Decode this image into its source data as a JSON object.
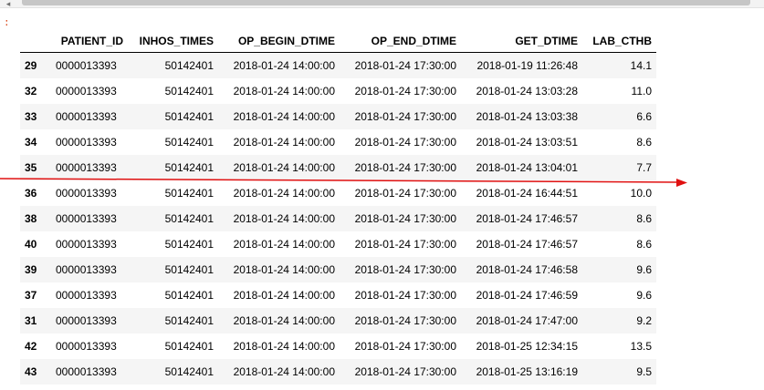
{
  "prompt": ":",
  "scrollbar": {
    "left_arrow": "◂"
  },
  "table": {
    "columns": [
      "",
      "PATIENT_ID",
      "INHOS_TIMES",
      "OP_BEGIN_DTIME",
      "OP_END_DTIME",
      "GET_DTIME",
      "LAB_CTHB"
    ],
    "rows": [
      [
        "29",
        "0000013393",
        "50142401",
        "2018-01-24 14:00:00",
        "2018-01-24 17:30:00",
        "2018-01-19 11:26:48",
        "14.1"
      ],
      [
        "32",
        "0000013393",
        "50142401",
        "2018-01-24 14:00:00",
        "2018-01-24 17:30:00",
        "2018-01-24 13:03:28",
        "11.0"
      ],
      [
        "33",
        "0000013393",
        "50142401",
        "2018-01-24 14:00:00",
        "2018-01-24 17:30:00",
        "2018-01-24 13:03:38",
        "6.6"
      ],
      [
        "34",
        "0000013393",
        "50142401",
        "2018-01-24 14:00:00",
        "2018-01-24 17:30:00",
        "2018-01-24 13:03:51",
        "8.6"
      ],
      [
        "35",
        "0000013393",
        "50142401",
        "2018-01-24 14:00:00",
        "2018-01-24 17:30:00",
        "2018-01-24 13:04:01",
        "7.7"
      ],
      [
        "36",
        "0000013393",
        "50142401",
        "2018-01-24 14:00:00",
        "2018-01-24 17:30:00",
        "2018-01-24 16:44:51",
        "10.0"
      ],
      [
        "38",
        "0000013393",
        "50142401",
        "2018-01-24 14:00:00",
        "2018-01-24 17:30:00",
        "2018-01-24 17:46:57",
        "8.6"
      ],
      [
        "40",
        "0000013393",
        "50142401",
        "2018-01-24 14:00:00",
        "2018-01-24 17:30:00",
        "2018-01-24 17:46:57",
        "8.6"
      ],
      [
        "39",
        "0000013393",
        "50142401",
        "2018-01-24 14:00:00",
        "2018-01-24 17:30:00",
        "2018-01-24 17:46:58",
        "9.6"
      ],
      [
        "37",
        "0000013393",
        "50142401",
        "2018-01-24 14:00:00",
        "2018-01-24 17:30:00",
        "2018-01-24 17:46:59",
        "9.6"
      ],
      [
        "31",
        "0000013393",
        "50142401",
        "2018-01-24 14:00:00",
        "2018-01-24 17:30:00",
        "2018-01-24 17:47:00",
        "9.2"
      ],
      [
        "42",
        "0000013393",
        "50142401",
        "2018-01-24 14:00:00",
        "2018-01-24 17:30:00",
        "2018-01-25 12:34:15",
        "13.5"
      ],
      [
        "43",
        "0000013393",
        "50142401",
        "2018-01-24 14:00:00",
        "2018-01-24 17:30:00",
        "2018-01-25 13:16:19",
        "9.5"
      ]
    ]
  },
  "annotation": {
    "color": "#e01010",
    "shape": "arrow"
  }
}
